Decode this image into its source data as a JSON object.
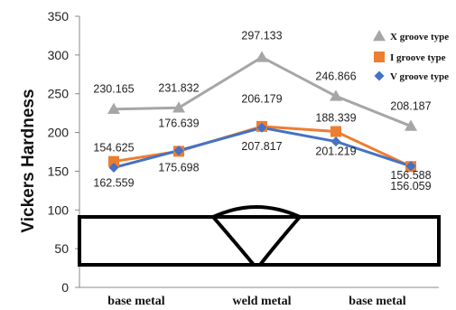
{
  "chart_data": {
    "type": "line",
    "title": "",
    "xlabel": "",
    "ylabel": "Vickers Hardness",
    "ylim": [
      0,
      350
    ],
    "yticks": [
      0,
      50,
      100,
      150,
      200,
      250,
      300,
      350
    ],
    "categories": [
      "base metal",
      "weld metal",
      "base metal"
    ],
    "x": [
      0,
      1,
      2,
      3,
      4
    ],
    "grid": false,
    "legend_position": "right",
    "series": [
      {
        "name": "X groove type",
        "marker": "triangle",
        "color": "#a6a6a6",
        "values": [
          230.165,
          231.832,
          297.133,
          246.866,
          208.187
        ],
        "labels": [
          "230.165",
          "231.832",
          "297.133",
          "246.866",
          "208.187"
        ]
      },
      {
        "name": "I groove type",
        "marker": "square",
        "color": "#ed7d31",
        "values": [
          162.559,
          175.698,
          207.817,
          201.219,
          156.059
        ],
        "labels": [
          "162.559",
          "175.698",
          "207.817",
          "201.219",
          "156.059"
        ]
      },
      {
        "name": "V groove type",
        "marker": "diamond",
        "color": "#4472c4",
        "values": [
          154.625,
          176.639,
          206.179,
          188.339,
          156.588
        ],
        "labels": [
          "154.625",
          "176.639",
          "206.179",
          "188.339",
          "156.588"
        ]
      }
    ]
  }
}
